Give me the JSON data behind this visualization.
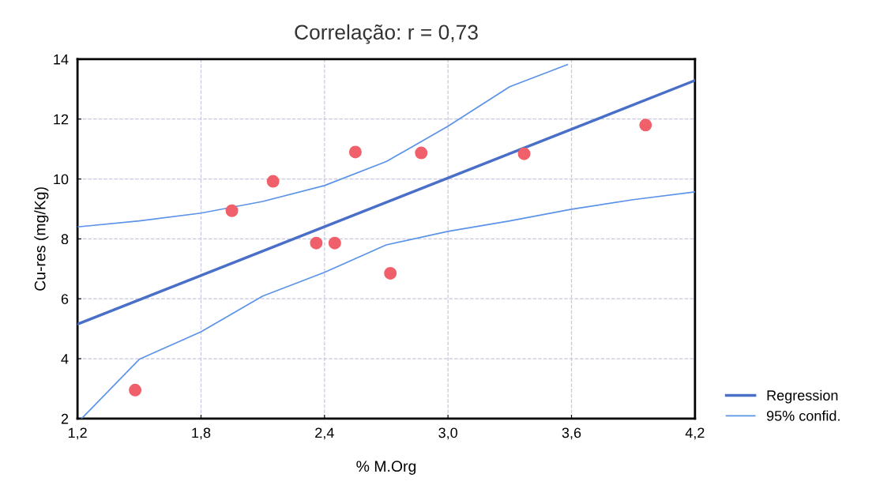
{
  "chart_data": {
    "type": "scatter",
    "title": "Correlação: r = 0,73",
    "xlabel": "% M.Org",
    "ylabel": "Cu-res (mg/Kg)",
    "x": [
      1.48,
      1.95,
      2.15,
      2.36,
      2.45,
      2.55,
      2.72,
      2.87,
      3.37,
      3.96
    ],
    "series": [
      {
        "color": "#f0606a",
        "marker": "circle",
        "values": [
          2.95,
          8.94,
          9.92,
          7.86,
          7.86,
          10.9,
          6.85,
          10.87,
          10.84,
          11.8
        ]
      },
      {
        "type": "line",
        "name": "Regression",
        "color": "#4a6fc8",
        "marker": "none",
        "x": [
          1.2,
          4.2
        ],
        "values": [
          5.15,
          13.29
        ]
      },
      {
        "type": "line",
        "name": "95% confid.",
        "color": "#5b93e8",
        "marker": "none",
        "x": [
          1.2,
          1.5,
          1.8,
          2.1,
          2.4,
          2.7,
          3.0,
          3.3,
          3.58
        ],
        "values": [
          8.4,
          8.6,
          8.86,
          9.25,
          9.78,
          10.58,
          11.76,
          13.08,
          13.82
        ]
      },
      {
        "type": "line",
        "color": "#5b93e8",
        "marker": "none",
        "x": [
          1.22,
          1.5,
          1.8,
          2.1,
          2.4,
          2.7,
          3.0,
          3.3,
          3.6,
          3.9,
          4.2
        ],
        "values": [
          2.0,
          3.98,
          4.9,
          6.09,
          6.88,
          7.8,
          8.25,
          8.6,
          8.99,
          9.31,
          9.57
        ]
      }
    ],
    "xlim": [
      1.2,
      4.2
    ],
    "ylim": [
      2,
      14
    ],
    "xticks": [
      {
        "value": 1.2,
        "label": "1,2"
      },
      {
        "value": 1.8,
        "label": "1,8"
      },
      {
        "value": 2.4,
        "label": "2,4"
      },
      {
        "value": 3.0,
        "label": "3,0"
      },
      {
        "value": 3.6,
        "label": "3,6"
      },
      {
        "value": 4.2,
        "label": "4,2"
      }
    ],
    "yticks": [
      2,
      4,
      6,
      8,
      10,
      12,
      14
    ],
    "grid": true,
    "legend": "bottom right"
  }
}
